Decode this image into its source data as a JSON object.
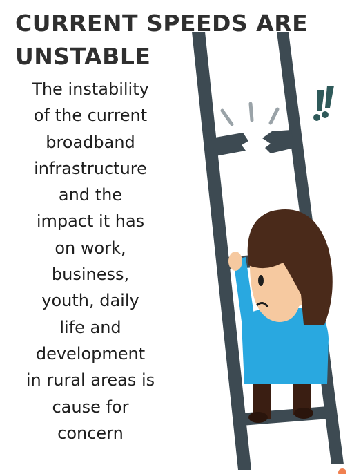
{
  "title_lines": [
    "CURRENT SPEEDS ARE",
    "UNSTABLE"
  ],
  "body_lines": [
    "The instability",
    "of the current",
    "broadband",
    "infrastructure",
    "and the",
    "impact it has",
    "on work,",
    "business,",
    "youth, daily",
    "life and",
    "development",
    "in rural areas is",
    "cause for",
    "concern"
  ]
}
